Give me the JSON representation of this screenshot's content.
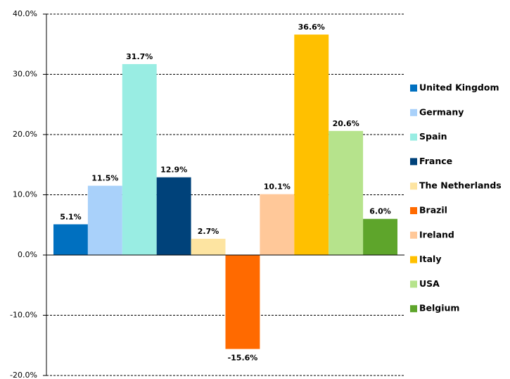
{
  "chart_data": {
    "type": "bar",
    "categories": [
      null
    ],
    "series": [
      {
        "name": "United Kingdom",
        "color": "#0070c0",
        "values": [
          5.1
        ],
        "value_labels": [
          "5.1%"
        ]
      },
      {
        "name": "Germany",
        "color": "#a9d1fa",
        "values": [
          11.5
        ],
        "value_labels": [
          "11.5%"
        ]
      },
      {
        "name": "Spain",
        "color": "#99ede3",
        "values": [
          31.7
        ],
        "value_labels": [
          "31.7%"
        ]
      },
      {
        "name": "France",
        "color": "#00427a",
        "values": [
          12.9
        ],
        "value_labels": [
          "12.9%"
        ]
      },
      {
        "name": "The Netherlands",
        "color": "#fde4a1",
        "values": [
          2.7
        ],
        "value_labels": [
          "2.7%"
        ]
      },
      {
        "name": "Brazil",
        "color": "#ff6a00",
        "values": [
          -15.6
        ],
        "value_labels": [
          "-15.6%"
        ]
      },
      {
        "name": "Ireland",
        "color": "#ffc899",
        "values": [
          10.1
        ],
        "value_labels": [
          "10.1%"
        ]
      },
      {
        "name": "Italy",
        "color": "#ffc000",
        "values": [
          36.6
        ],
        "value_labels": [
          "36.6%"
        ]
      },
      {
        "name": "USA",
        "color": "#b6e38c",
        "values": [
          20.6
        ],
        "value_labels": [
          "20.6%"
        ]
      },
      {
        "name": "Belgium",
        "color": "#5ea52b",
        "values": [
          6.0
        ],
        "value_labels": [
          "6.0%"
        ]
      }
    ],
    "ylim": [
      -20,
      40
    ],
    "yticks": [
      {
        "value": -20,
        "label": "-20.0%"
      },
      {
        "value": -10,
        "label": "-10.0%"
      },
      {
        "value": 0,
        "label": "0.0%"
      },
      {
        "value": 10,
        "label": "10.0%"
      },
      {
        "value": 20,
        "label": "20.0%"
      },
      {
        "value": 30,
        "label": "30.0%"
      },
      {
        "value": 40,
        "label": "40.0%"
      }
    ],
    "grid": true,
    "legend": "right"
  }
}
